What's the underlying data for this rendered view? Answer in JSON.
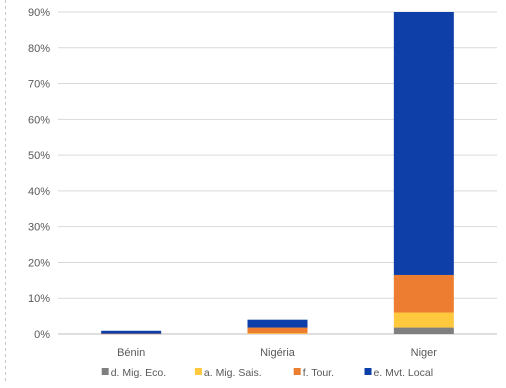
{
  "chart_data": {
    "type": "bar",
    "stacked": true,
    "categories": [
      "Bénin",
      "Nigéria",
      "Niger"
    ],
    "series": [
      {
        "name": "d. Mig. Eco.",
        "color": "#7f7f7f",
        "values": [
          0.0,
          0.0,
          1.8
        ]
      },
      {
        "name": "a. Mig. Sais.",
        "color": "#ffc83d",
        "values": [
          0.0,
          0.2,
          4.2
        ]
      },
      {
        "name": "f. Tour.",
        "color": "#ed7d31",
        "values": [
          0.1,
          1.6,
          10.5
        ]
      },
      {
        "name": "e. Mvt. Local",
        "color": "#0e3fa8",
        "values": [
          0.8,
          2.2,
          73.5
        ]
      }
    ],
    "ylim": [
      0,
      90
    ],
    "yticks": [
      "0%",
      "10%",
      "20%",
      "30%",
      "40%",
      "50%",
      "60%",
      "70%",
      "80%",
      "90%"
    ],
    "grid": true,
    "legend_position": "bottom",
    "xlabel": "",
    "ylabel": ""
  }
}
